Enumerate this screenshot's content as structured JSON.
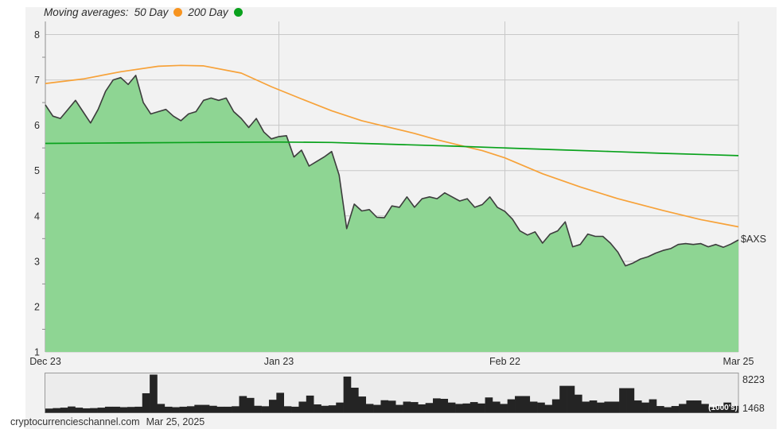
{
  "legend": {
    "title": "Moving averages:",
    "ma50_label": "50 Day",
    "ma200_label": "200 Day",
    "ma50_color": "#f79420",
    "ma200_color": "#0aa11d"
  },
  "ticker_label": "$AXS",
  "volume_panel": {
    "max_label": "8223",
    "last_label": "1468",
    "units_label": "(1000's)"
  },
  "footer": {
    "source": "cryptocurrencieschannel.com",
    "date": "Mar 25, 2025"
  },
  "chart_data": {
    "type": "area",
    "title": "",
    "ylim": [
      1,
      8
    ],
    "y_ticks": [
      1,
      2,
      3,
      4,
      5,
      6,
      7,
      8
    ],
    "days_total": 92,
    "x_ticks": [
      {
        "label": "Dec 23",
        "day": 0
      },
      {
        "label": "Jan 23",
        "day": 31
      },
      {
        "label": "Feb 22",
        "day": 61
      },
      {
        "label": "Mar 25",
        "day": 92
      }
    ],
    "grid_color": "#c8c8c8",
    "axis_color": "#8f8f8f",
    "series": [
      {
        "name": "AXS price",
        "type": "area",
        "fill_color": "#8ed593",
        "stroke_color": "#3d3d3d",
        "values": [
          6.45,
          6.2,
          6.15,
          6.35,
          6.55,
          6.3,
          6.05,
          6.35,
          6.75,
          7.0,
          7.05,
          6.9,
          7.1,
          6.5,
          6.25,
          6.3,
          6.35,
          6.2,
          6.1,
          6.25,
          6.3,
          6.55,
          6.6,
          6.55,
          6.6,
          6.3,
          6.15,
          5.95,
          6.15,
          5.85,
          5.7,
          5.75,
          5.77,
          5.3,
          5.45,
          5.1,
          5.2,
          5.3,
          5.42,
          4.9,
          3.72,
          4.26,
          4.11,
          4.14,
          3.97,
          3.96,
          4.22,
          4.19,
          4.42,
          4.19,
          4.38,
          4.42,
          4.38,
          4.51,
          4.42,
          4.33,
          4.38,
          4.19,
          4.25,
          4.42,
          4.19,
          4.1,
          3.93,
          3.67,
          3.58,
          3.65,
          3.4,
          3.6,
          3.67,
          3.87,
          3.32,
          3.37,
          3.6,
          3.55,
          3.55,
          3.4,
          3.2,
          2.9,
          2.96,
          3.05,
          3.1,
          3.18,
          3.24,
          3.28,
          3.37,
          3.39,
          3.37,
          3.39,
          3.32,
          3.37,
          3.31,
          3.38,
          3.47
        ]
      },
      {
        "name": "50 Day moving average",
        "type": "line",
        "color": "#f7a239",
        "anchors": [
          [
            0,
            6.92
          ],
          [
            5,
            7.02
          ],
          [
            10,
            7.18
          ],
          [
            15,
            7.3
          ],
          [
            18,
            7.32
          ],
          [
            21,
            7.31
          ],
          [
            26,
            7.15
          ],
          [
            30,
            6.85
          ],
          [
            34,
            6.58
          ],
          [
            38,
            6.32
          ],
          [
            42,
            6.1
          ],
          [
            45,
            5.98
          ],
          [
            49,
            5.82
          ],
          [
            52,
            5.68
          ],
          [
            55,
            5.56
          ],
          [
            58,
            5.44
          ],
          [
            61,
            5.28
          ],
          [
            66,
            4.93
          ],
          [
            71,
            4.64
          ],
          [
            76,
            4.38
          ],
          [
            82,
            4.12
          ],
          [
            87,
            3.92
          ],
          [
            92,
            3.76
          ]
        ]
      },
      {
        "name": "200 Day moving average",
        "type": "line",
        "color": "#09a21c",
        "anchors": [
          [
            0,
            5.6
          ],
          [
            10,
            5.61
          ],
          [
            20,
            5.62
          ],
          [
            31,
            5.63
          ],
          [
            38,
            5.62
          ],
          [
            42,
            5.6
          ],
          [
            48,
            5.57
          ],
          [
            54,
            5.54
          ],
          [
            61,
            5.5
          ],
          [
            68,
            5.46
          ],
          [
            75,
            5.42
          ],
          [
            82,
            5.38
          ],
          [
            88,
            5.35
          ],
          [
            92,
            5.33
          ]
        ]
      }
    ],
    "volume": {
      "name": "Volume (1000's)",
      "type": "bar",
      "color": "#242424",
      "panel_bg": "#ececec",
      "panel_border": "#9a9a9a",
      "max": 8223,
      "values": [
        900,
        1000,
        1100,
        1350,
        1100,
        950,
        1000,
        1100,
        1300,
        1300,
        1200,
        1250,
        1300,
        4200,
        8223,
        1900,
        1300,
        1200,
        1300,
        1400,
        1700,
        1700,
        1500,
        1300,
        1300,
        1400,
        3600,
        3200,
        1500,
        1400,
        2800,
        4300,
        1400,
        1300,
        2400,
        3700,
        1800,
        1500,
        1600,
        2200,
        7800,
        5400,
        3500,
        1900,
        1700,
        2700,
        2600,
        1700,
        2400,
        2300,
        1800,
        2100,
        3100,
        3000,
        2200,
        1900,
        2000,
        2300,
        2000,
        3300,
        2400,
        1900,
        2900,
        3600,
        3600,
        2400,
        2200,
        1700,
        2900,
        5800,
        5800,
        3900,
        2400,
        2650,
        2200,
        2400,
        2400,
        5300,
        5300,
        2650,
        2200,
        2900,
        1450,
        1200,
        1450,
        1900,
        2650,
        2650,
        1900,
        1200,
        1450,
        2200,
        1468
      ]
    }
  }
}
